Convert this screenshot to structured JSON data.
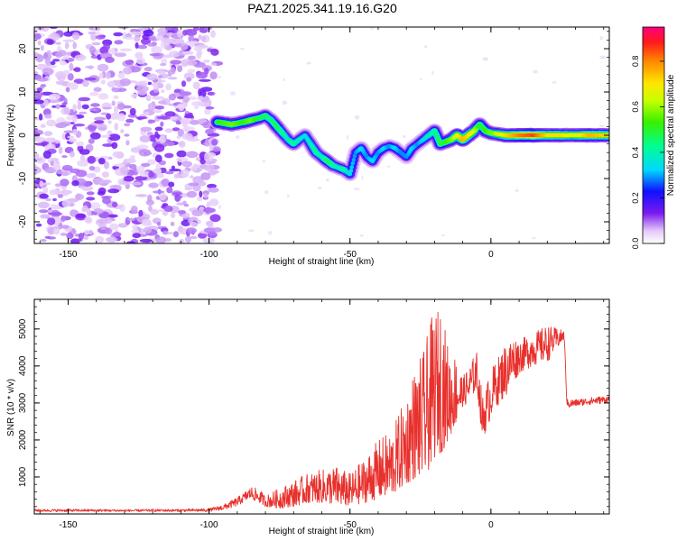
{
  "title": "PAZ1.2025.341.19.16.G20",
  "colors": {
    "snr_line": "#e8302c",
    "spectrogram_weak": "#c79cf0",
    "spectrogram_mid": "#7a1af0",
    "axis": "#000000"
  },
  "chart_data": [
    {
      "type": "heatmap",
      "name": "spectrogram",
      "title": "PAZ1.2025.341.19.16.G20",
      "xlabel": "Height of straight line (km)",
      "ylabel": "Frequency (Hz)",
      "xlim": [
        -162,
        42
      ],
      "ylim": [
        -25,
        25
      ],
      "xticks": [
        -150,
        -100,
        -50,
        0
      ],
      "yticks": [
        -20,
        -10,
        0,
        10,
        20
      ],
      "grid": false,
      "noise_region_x": [
        -162,
        -97
      ],
      "track": {
        "x": [
          -97,
          -92,
          -88,
          -85,
          -82,
          -80,
          -78,
          -76,
          -74,
          -72,
          -70,
          -68,
          -66,
          -64,
          -62,
          -60,
          -58,
          -56,
          -54,
          -52,
          -50,
          -48,
          -46,
          -44,
          -42,
          -40,
          -38,
          -36,
          -34,
          -32,
          -30,
          -28,
          -26,
          -24,
          -22,
          -20,
          -18,
          -16,
          -14,
          -12,
          -10,
          -8,
          -6,
          -4,
          -2,
          0,
          5,
          10,
          15,
          20,
          25,
          30,
          35,
          42
        ],
        "freq_hz": [
          3,
          2.5,
          3,
          3.5,
          4,
          4.5,
          3.5,
          2,
          0.5,
          -1,
          -2,
          -1,
          0,
          -2,
          -4,
          -5,
          -6,
          -7,
          -7.5,
          -8,
          -9,
          -4,
          -3,
          -5,
          -6,
          -4,
          -3,
          -2.5,
          -3,
          -4,
          -5,
          -3,
          -2,
          -1,
          0,
          1,
          -2,
          -1.5,
          -1,
          0,
          -1,
          0,
          1,
          2.5,
          1,
          0.5,
          0,
          0,
          0,
          0,
          0,
          0,
          0,
          0
        ],
        "amplitude": [
          0.55,
          0.6,
          0.55,
          0.6,
          0.5,
          0.5,
          0.45,
          0.5,
          0.45,
          0.4,
          0.45,
          0.4,
          0.35,
          0.4,
          0.45,
          0.4,
          0.5,
          0.45,
          0.4,
          0.45,
          0.35,
          0.3,
          0.35,
          0.3,
          0.35,
          0.3,
          0.35,
          0.3,
          0.35,
          0.3,
          0.3,
          0.35,
          0.3,
          0.35,
          0.4,
          0.45,
          0.5,
          0.55,
          0.6,
          0.7,
          0.8,
          0.75,
          0.7,
          0.5,
          0.55,
          0.6,
          0.75,
          0.85,
          0.9,
          0.75,
          0.75,
          0.7,
          0.8,
          0.75
        ]
      },
      "colorbar": {
        "label": "Normalized spectral amplitude",
        "ticks": [
          "0.0",
          "0.2",
          "0.4",
          "0.6",
          "0.8"
        ],
        "range": [
          0,
          0.95
        ]
      }
    },
    {
      "type": "line",
      "name": "snr",
      "xlabel": "Height of straight line (km)",
      "ylabel": "SNR (10 * v/v)",
      "xlim": [
        -162,
        42
      ],
      "ylim": [
        0,
        5800
      ],
      "xticks": [
        -150,
        -100,
        -50,
        0
      ],
      "yticks": [
        1000,
        2000,
        3000,
        4000,
        5000
      ],
      "grid": false,
      "series": [
        {
          "name": "SNR",
          "x": [
            -162,
            -150,
            -140,
            -130,
            -120,
            -110,
            -100,
            -95,
            -90,
            -88,
            -85,
            -82,
            -80,
            -75,
            -70,
            -65,
            -60,
            -55,
            -50,
            -45,
            -40,
            -35,
            -30,
            -28,
            -26,
            -24,
            -22,
            -20,
            -19,
            -18,
            -15,
            -12,
            -10,
            -8,
            -5,
            -3,
            0,
            3,
            5,
            8,
            10,
            15,
            20,
            24,
            26,
            27,
            30,
            35,
            42
          ],
          "envelope_low": [
            60,
            60,
            60,
            60,
            60,
            60,
            60,
            100,
            200,
            300,
            400,
            300,
            200,
            150,
            200,
            300,
            300,
            250,
            200,
            300,
            400,
            500,
            800,
            900,
            1000,
            900,
            1200,
            1500,
            1800,
            1600,
            2000,
            2500,
            2900,
            3000,
            3400,
            2000,
            2600,
            3000,
            3100,
            3500,
            3800,
            4000,
            4100,
            4500,
            4700,
            2850,
            2900,
            2950,
            3000
          ],
          "envelope_high": [
            130,
            130,
            130,
            120,
            130,
            130,
            150,
            250,
            450,
            550,
            750,
            650,
            500,
            700,
            900,
            1100,
            1200,
            1300,
            1100,
            1500,
            2000,
            2300,
            3200,
            3800,
            4100,
            4400,
            5000,
            5600,
            5500,
            5800,
            4500,
            4300,
            3700,
            4000,
            4400,
            3200,
            3900,
            4300,
            4600,
            4800,
            4700,
            4900,
            5100,
            5000,
            4950,
            3100,
            3100,
            3150,
            3200
          ]
        }
      ]
    }
  ]
}
